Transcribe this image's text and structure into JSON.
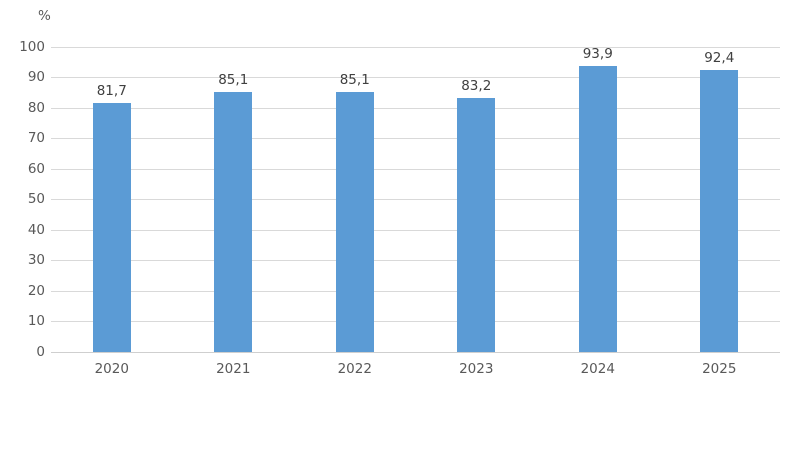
{
  "chart_data": {
    "type": "bar",
    "categories": [
      "2020",
      "2021",
      "2022",
      "2023",
      "2024",
      "2025"
    ],
    "values": [
      81.7,
      85.1,
      85.1,
      83.2,
      93.9,
      92.4
    ],
    "value_labels": [
      "81,7",
      "85,1",
      "85,1",
      "83,2",
      "93,9",
      "92,4"
    ],
    "title": "",
    "xlabel": "",
    "ylabel": "%",
    "ylim": [
      0,
      100
    ],
    "ytick_step": 10,
    "ytick_labels": [
      "0",
      "10",
      "20",
      "30",
      "40",
      "50",
      "60",
      "70",
      "80",
      "90",
      "100"
    ],
    "grid": true,
    "legend": "none",
    "colors": {
      "bar_fill": "#5b9bd5",
      "gridline": "#d9d9d9",
      "axis_line": "#cfcfcf",
      "tick_label": "#595959",
      "data_label": "#404040",
      "background": "#ffffff"
    }
  }
}
